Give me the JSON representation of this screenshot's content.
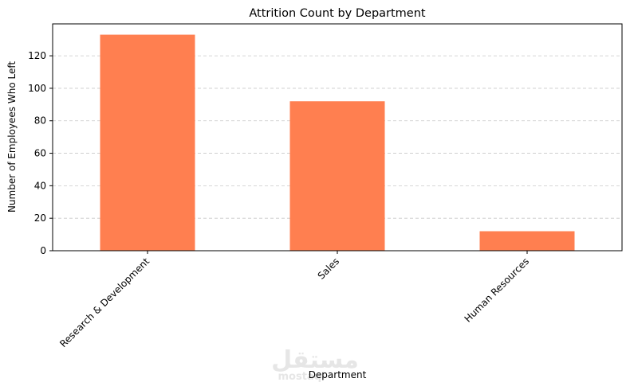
{
  "chart_data": {
    "type": "bar",
    "title": "Attrition Count by Department",
    "xlabel": "Department",
    "ylabel": "Number of Employees Who Left",
    "categories": [
      "Research & Development",
      "Sales",
      "Human Resources"
    ],
    "values": [
      133,
      92,
      12
    ],
    "ylim": [
      0,
      139.65
    ],
    "yticks": [
      0,
      20,
      40,
      60,
      80,
      100,
      120
    ],
    "grid": "y-dashed",
    "bar_color": "#FF7F50",
    "xtick_rotation": 45
  },
  "watermark": {
    "arabic": "مستقل",
    "latin": "mostaql"
  }
}
